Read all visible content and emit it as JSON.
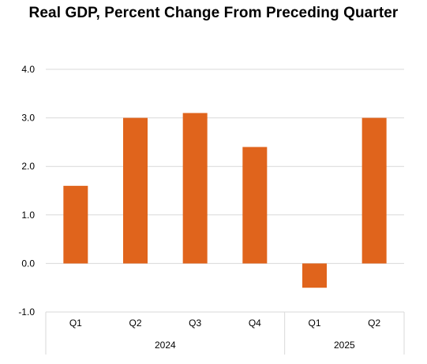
{
  "chart_data": {
    "type": "bar",
    "title": "Real GDP, Percent Change From Preceding Quarter",
    "xlabel": "",
    "ylabel": "",
    "ylim": [
      -1.0,
      4.0
    ],
    "yticks": [
      "-1.0",
      "0.0",
      "1.0",
      "2.0",
      "3.0",
      "4.0"
    ],
    "ytick_values": [
      -1,
      0,
      1,
      2,
      3,
      4
    ],
    "grid": true,
    "legend": "none",
    "categories": [
      "Q1",
      "Q2",
      "Q3",
      "Q4",
      "Q1",
      "Q2"
    ],
    "groups": [
      {
        "label": "2024",
        "count": 4
      },
      {
        "label": "2025",
        "count": 2
      }
    ],
    "values": [
      1.6,
      3.0,
      3.1,
      2.4,
      -0.5,
      3.0
    ],
    "bar_color": "#E0641C"
  }
}
